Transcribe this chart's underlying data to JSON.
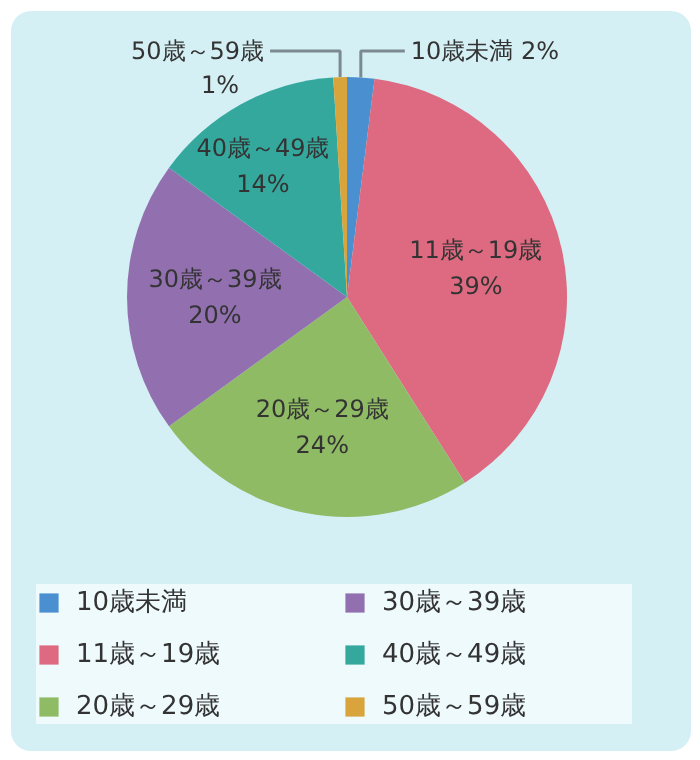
{
  "chart_data": {
    "type": "pie",
    "categories": [
      "10歳未満",
      "11歳～19歳",
      "20歳～29歳",
      "30歳～39歳",
      "40歳～49歳",
      "50歳～59歳"
    ],
    "values": [
      2,
      39,
      24,
      20,
      14,
      1
    ],
    "colors": [
      "#4a8fd0",
      "#dd6a80",
      "#8fbb65",
      "#9270b0",
      "#35a89e",
      "#d9a43c"
    ],
    "value_labels": [
      "2%",
      "39%",
      "24%",
      "20%",
      "14%",
      "1%"
    ],
    "legend": "bottom"
  }
}
